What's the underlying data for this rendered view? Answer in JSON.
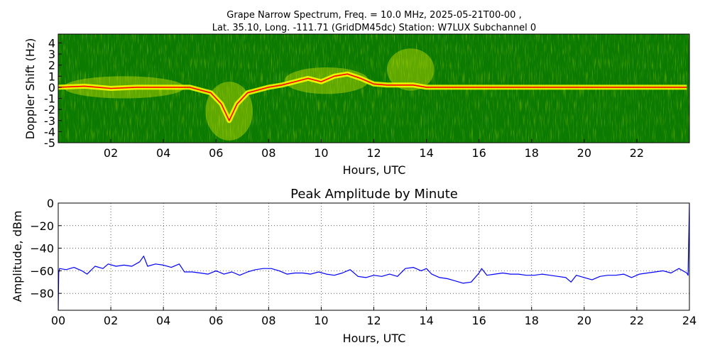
{
  "chart_data": [
    {
      "type": "heatmap",
      "title_line1": "Grape Narrow Spectrum, Freq. = 10.0 MHz, 2025-05-21T00-00 ,",
      "title_line2": "Lat.  35.10, Long. -111.71 (GridDM45dc) Station: W7LUX Subchannel 0",
      "xlabel": "Hours, UTC",
      "ylabel": "Doppler Shift (Hz)",
      "xlim": [
        0,
        24
      ],
      "ylim": [
        -5,
        5
      ],
      "x_ticks": [
        "02",
        "04",
        "06",
        "08",
        "10",
        "12",
        "14",
        "16",
        "18",
        "20",
        "22"
      ],
      "x_tick_values": [
        2,
        4,
        6,
        8,
        10,
        12,
        14,
        16,
        18,
        20,
        22
      ],
      "y_ticks": [
        "4",
        "3",
        "2",
        "1",
        "0",
        "-1",
        "-2",
        "-3",
        "-4",
        "-5"
      ],
      "y_tick_values": [
        4,
        3,
        2,
        1,
        0,
        -1,
        -2,
        -3,
        -4,
        -5
      ],
      "colors": {
        "background": "#0a7a00",
        "mid": "#ffff00",
        "peak": "#ff0000"
      },
      "carrier_trace": {
        "x": [
          0,
          1,
          2,
          3,
          4,
          5,
          5.8,
          6.2,
          6.5,
          6.8,
          7.2,
          8,
          8.5,
          9,
          9.5,
          10,
          10.5,
          11,
          11.5,
          12,
          12.5,
          13,
          13.5,
          14,
          15,
          16,
          17,
          18,
          19,
          20,
          21,
          22,
          23,
          23.9
        ],
        "y": [
          0.0,
          0.1,
          -0.1,
          0.0,
          0.0,
          0.0,
          -0.5,
          -1.5,
          -3.0,
          -1.5,
          -0.5,
          0.0,
          0.2,
          0.5,
          0.8,
          0.5,
          1.0,
          1.2,
          0.8,
          0.3,
          0.2,
          0.2,
          0.2,
          0.0,
          0.0,
          0.0,
          0.0,
          0.0,
          0.0,
          0.0,
          0.0,
          0.0,
          0.0,
          0.0
        ]
      },
      "spread_events": [
        {
          "x_start": 0.2,
          "x_end": 4.8,
          "y_low": -1.0,
          "y_high": 1.0
        },
        {
          "x_start": 5.6,
          "x_end": 7.4,
          "y_low": -4.8,
          "y_high": 0.5
        },
        {
          "x_start": 8.6,
          "x_end": 11.8,
          "y_low": -0.6,
          "y_high": 1.8
        },
        {
          "x_start": 12.5,
          "x_end": 14.3,
          "y_low": -0.3,
          "y_high": 3.5
        }
      ]
    },
    {
      "type": "line",
      "title": "Peak Amplitude by Minute",
      "xlabel": "Hours, UTC",
      "ylabel": "Amplitude, dBm",
      "xlim": [
        0,
        24
      ],
      "ylim": [
        -95,
        0
      ],
      "grid": true,
      "x_ticks": [
        "00",
        "02",
        "04",
        "06",
        "08",
        "10",
        "12",
        "14",
        "16",
        "18",
        "20",
        "22",
        "24"
      ],
      "x_tick_values": [
        0,
        2,
        4,
        6,
        8,
        10,
        12,
        14,
        16,
        18,
        20,
        22,
        24
      ],
      "y_ticks": [
        "0",
        "−20",
        "−40",
        "−60",
        "−80"
      ],
      "y_tick_values": [
        0,
        -20,
        -40,
        -60,
        -80
      ],
      "line_color": "#0000ff",
      "series": [
        {
          "x": [
            0,
            0.02,
            0.05,
            0.3,
            0.6,
            0.9,
            1.1,
            1.4,
            1.7,
            1.9,
            2.2,
            2.5,
            2.8,
            3.1,
            3.25,
            3.4,
            3.7,
            4.0,
            4.3,
            4.6,
            4.8,
            5.1,
            5.4,
            5.7,
            6.0,
            6.3,
            6.6,
            6.9,
            7.2,
            7.5,
            7.8,
            8.1,
            8.4,
            8.7,
            9.0,
            9.3,
            9.6,
            9.9,
            10.2,
            10.5,
            10.8,
            11.1,
            11.4,
            11.7,
            12.0,
            12.3,
            12.6,
            12.9,
            13.2,
            13.5,
            13.8,
            14.0,
            14.2,
            14.5,
            14.8,
            15.1,
            15.4,
            15.7,
            16.0,
            16.1,
            16.3,
            16.6,
            16.9,
            17.2,
            17.5,
            17.8,
            18.1,
            18.4,
            18.7,
            19.0,
            19.3,
            19.5,
            19.7,
            20.0,
            20.3,
            20.6,
            20.9,
            21.2,
            21.5,
            21.8,
            22.1,
            22.4,
            22.7,
            23.0,
            23.3,
            23.6,
            23.9,
            23.95,
            24.0
          ],
          "y": [
            -95,
            -62,
            -58,
            -59,
            -57,
            -60,
            -63,
            -56,
            -58,
            -54,
            -56,
            -55,
            -56,
            -52,
            -47,
            -56,
            -54,
            -55,
            -57,
            -54,
            -61,
            -61,
            -62,
            -63,
            -60,
            -63,
            -61,
            -64,
            -61,
            -59,
            -58,
            -58,
            -60,
            -63,
            -62,
            -62,
            -63,
            -61,
            -63,
            -64,
            -62,
            -59,
            -65,
            -66,
            -64,
            -65,
            -63,
            -65,
            -58,
            -57,
            -60,
            -58,
            -63,
            -66,
            -67,
            -69,
            -71,
            -70,
            -62,
            -58,
            -64,
            -63,
            -62,
            -63,
            -63,
            -64,
            -64,
            -63,
            -64,
            -65,
            -66,
            -70,
            -64,
            -66,
            -68,
            -65,
            -64,
            -64,
            -63,
            -66,
            -63,
            -62,
            -61,
            -60,
            -62,
            -58,
            -62,
            -64,
            0
          ]
        }
      ]
    }
  ]
}
